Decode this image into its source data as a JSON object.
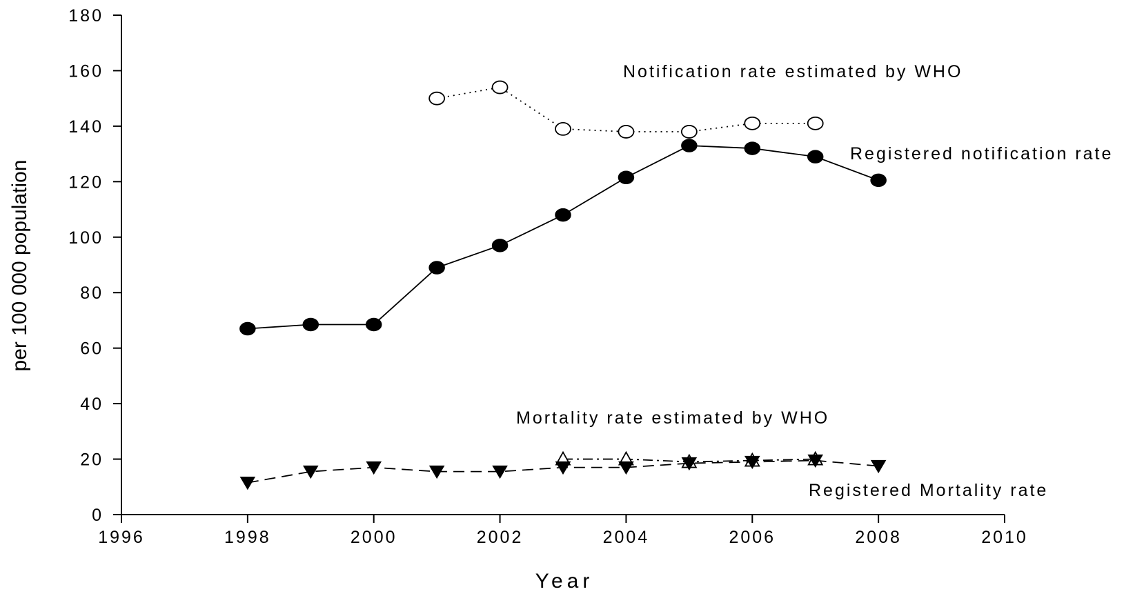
{
  "chart_data": {
    "type": "line",
    "title": "",
    "xlabel": "Year",
    "ylabel": "per 100 000 population",
    "xlim": [
      1996,
      2010
    ],
    "ylim": [
      0,
      180
    ],
    "xticks": [
      "1996",
      "1998",
      "2000",
      "2002",
      "2004",
      "2006",
      "2008",
      "2010"
    ],
    "yticks": [
      "0",
      "20",
      "40",
      "60",
      "80",
      "100",
      "120",
      "140",
      "160",
      "180"
    ],
    "grid": false,
    "legend": "inline labels",
    "series": [
      {
        "name": "Notification rate estimated by WHO",
        "marker": "open-circle",
        "line": "dotted",
        "x": [
          2001,
          2002,
          2003,
          2004,
          2005,
          2006,
          2007
        ],
        "y": [
          150,
          154,
          139,
          138,
          138,
          141,
          141
        ]
      },
      {
        "name": "Registered notification rate",
        "marker": "filled-circle",
        "line": "solid",
        "x": [
          1998,
          1999,
          2000,
          2001,
          2002,
          2003,
          2004,
          2005,
          2006,
          2007,
          2008
        ],
        "y": [
          67,
          68.5,
          68.5,
          89,
          97,
          108,
          121.5,
          133,
          132,
          129,
          120.5
        ]
      },
      {
        "name": "Mortality rate estimated by WHO",
        "marker": "open-triangle-up",
        "line": "dash-dot",
        "x": [
          2003,
          2004,
          2005,
          2006,
          2007
        ],
        "y": [
          20,
          20,
          19,
          19.5,
          20
        ]
      },
      {
        "name": "Registered Mortality rate",
        "marker": "filled-triangle-down",
        "line": "dashed",
        "x": [
          1998,
          1999,
          2000,
          2001,
          2002,
          2003,
          2004,
          2005,
          2006,
          2007,
          2008
        ],
        "y": [
          11.5,
          15.5,
          17,
          15.5,
          15.5,
          17,
          17,
          18.5,
          19,
          19.5,
          17.5
        ]
      }
    ]
  },
  "colors": {
    "axis": "#000000",
    "marker_fill": "#000000",
    "open_marker_fill": "#ffffff"
  }
}
